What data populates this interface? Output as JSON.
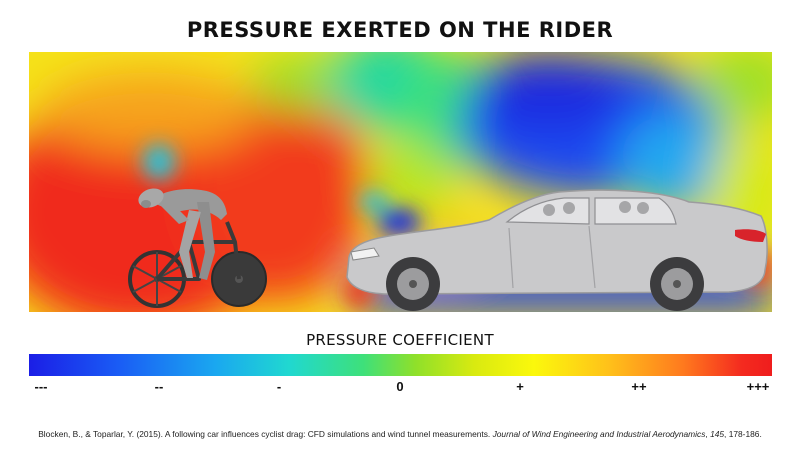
{
  "title": "PRESSURE EXERTED ON THE RIDER",
  "legend": {
    "title": "PRESSURE COEFFICIENT",
    "ticks": [
      "---",
      "--",
      "-",
      "0",
      "+",
      "++",
      "+++"
    ],
    "colors": [
      "#1b1ee6",
      "#1aa7f0",
      "#3ee07a",
      "#fbf80c",
      "#ff7a1e",
      "#ef1d1d"
    ]
  },
  "citation": {
    "authors": "Blocken, B., & Toparlar, Y. (2015). A following car influences cyclist drag: CFD simulations and wind tunnel measurements.",
    "journal": "Journal of Wind Engineering and Industrial Aerodynamics",
    "volume": "145",
    "pages": "178-186."
  },
  "figure": {
    "subjects": [
      "cyclist",
      "car"
    ],
    "colors": {
      "car_body": "#c9c9cb",
      "cyclist": "#9a9a9a",
      "wheel": "#3a3a3a"
    }
  }
}
